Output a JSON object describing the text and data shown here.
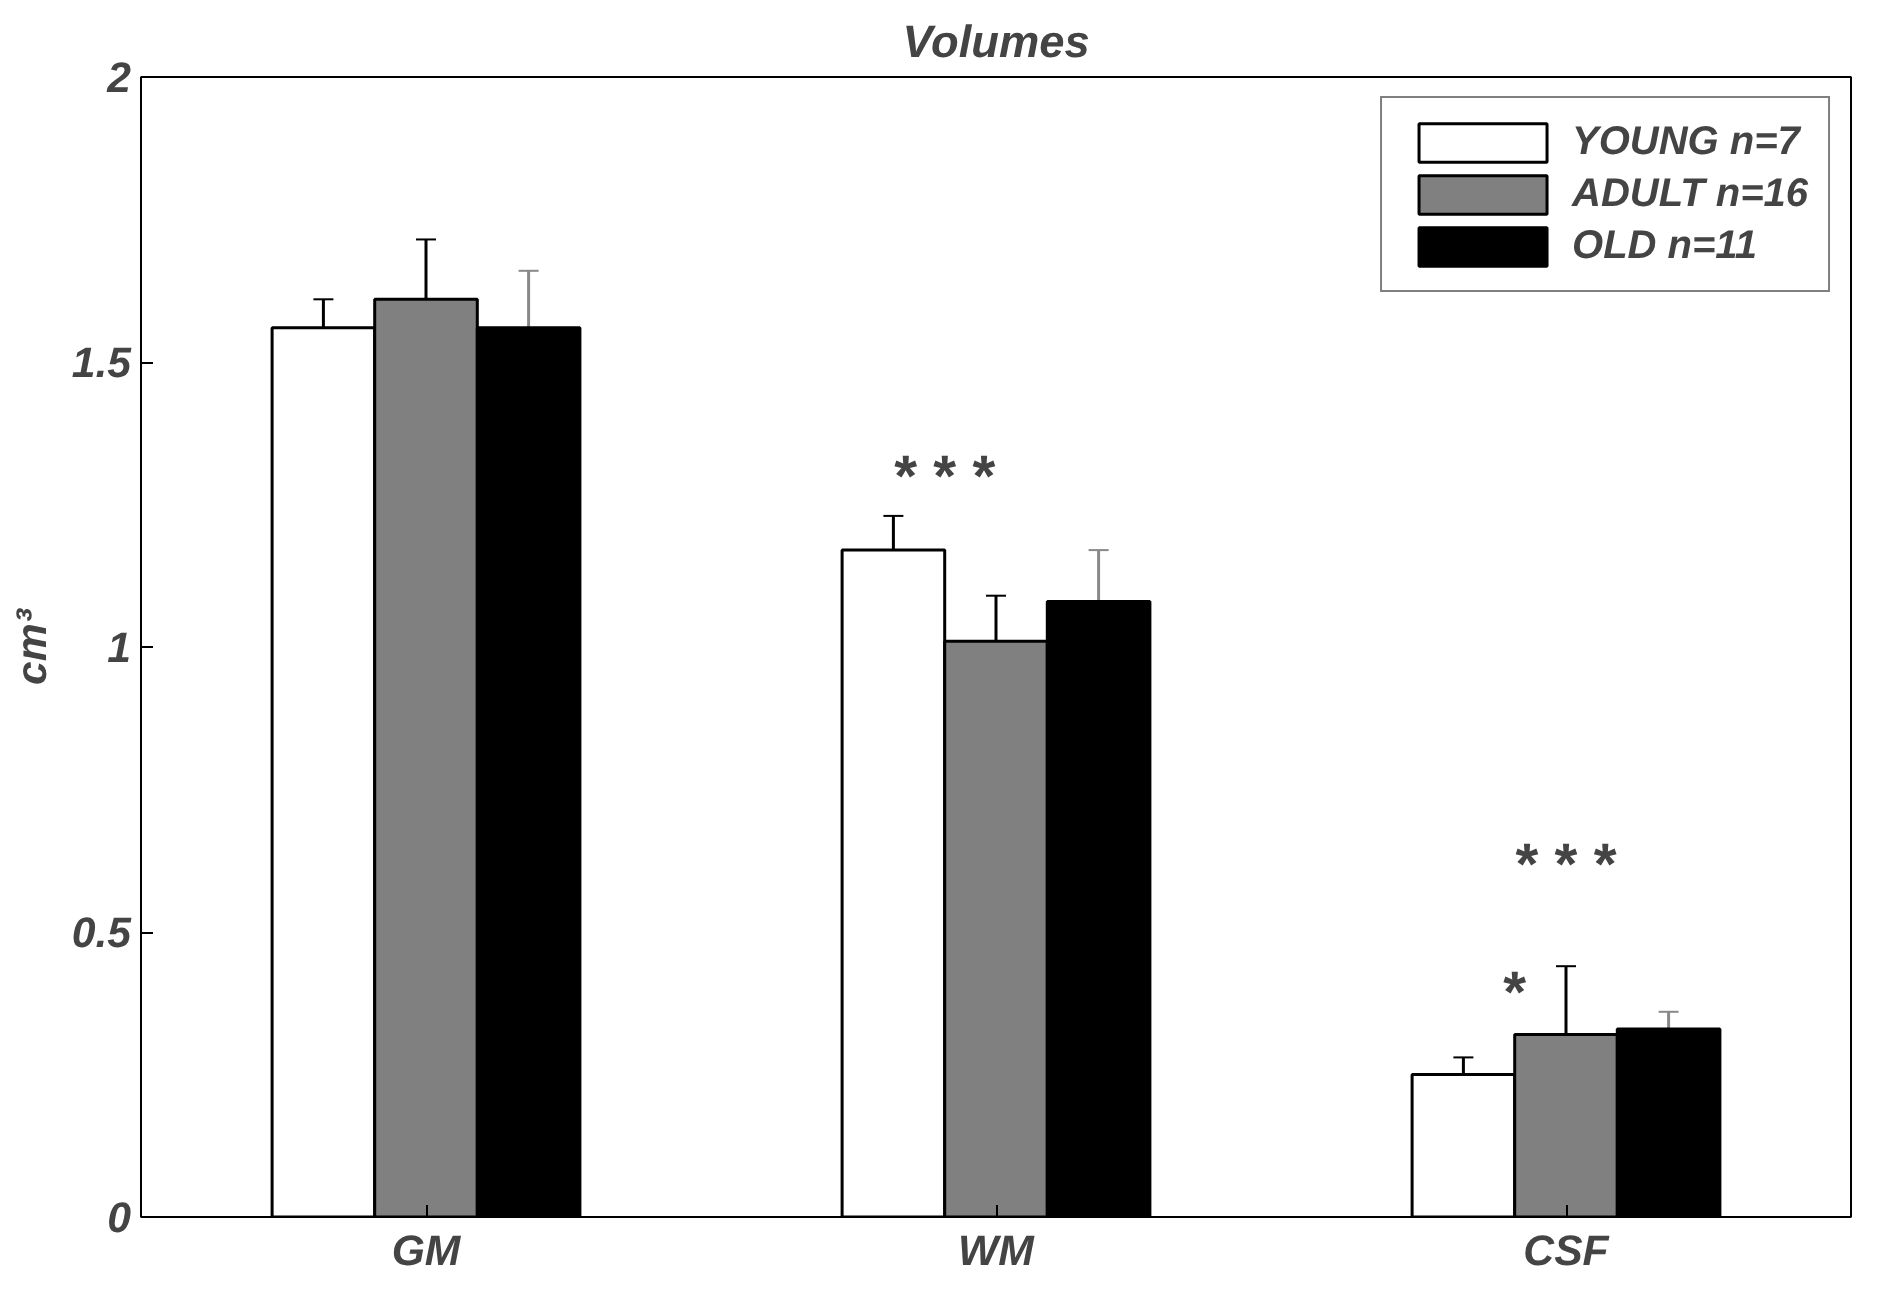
{
  "chart_data": {
    "type": "bar",
    "title": "Volumes",
    "ylabel": "cm³",
    "categories": [
      "GM",
      "WM",
      "CSF"
    ],
    "ylim": [
      0,
      2
    ],
    "yticks": [
      0,
      0.5,
      1,
      1.5,
      2
    ],
    "grid": false,
    "legend": "top right",
    "series": [
      {
        "name": "YOUNG n=7",
        "color": "#ffffff",
        "values": [
          1.56,
          1.17,
          0.25
        ],
        "errors": [
          0.05,
          0.06,
          0.03
        ]
      },
      {
        "name": "ADULT n=16",
        "color": "#808080",
        "values": [
          1.61,
          1.01,
          0.32
        ],
        "errors": [
          0.105,
          0.08,
          0.12
        ]
      },
      {
        "name": "OLD n=11",
        "color": "#000000",
        "values": [
          1.56,
          1.08,
          0.33
        ],
        "errors": [
          0.1,
          0.09,
          0.03
        ]
      }
    ],
    "annotations": [
      "* * *",
      "* * *",
      "*"
    ]
  }
}
